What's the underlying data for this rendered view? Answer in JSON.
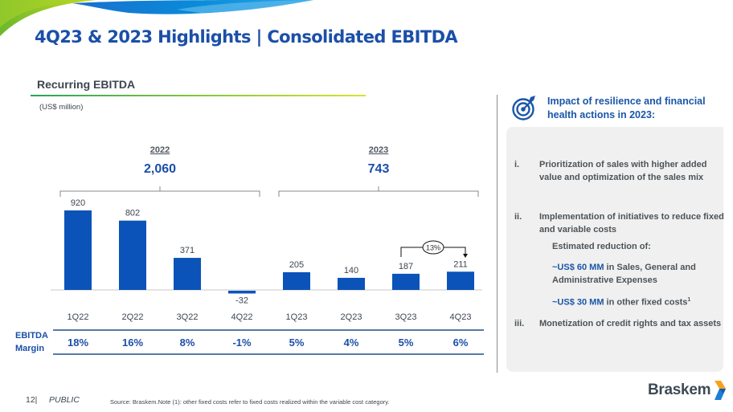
{
  "header": {
    "title": "4Q23 & 2023 Highlights | Consolidated EBITDA"
  },
  "section": {
    "title": "Recurring EBITDA",
    "units": "(US$ million)"
  },
  "chart_data": {
    "type": "bar",
    "title": "Recurring EBITDA",
    "ylabel": "US$ million",
    "xlabel": "",
    "categories": [
      "1Q22",
      "2Q22",
      "3Q22",
      "4Q22",
      "1Q23",
      "2Q23",
      "3Q23",
      "4Q23"
    ],
    "values": [
      920,
      802,
      371,
      -32,
      205,
      140,
      187,
      211
    ],
    "value_labels": [
      "920",
      "802",
      "371",
      "-32",
      "205",
      "140",
      "187",
      "211"
    ],
    "ylim": [
      -60,
      1000
    ],
    "grid": false,
    "bar_color": "#0b53b8",
    "year_groups": [
      {
        "year": "2022",
        "total": "2,060",
        "from_index": 0,
        "to_index": 3
      },
      {
        "year": "2023",
        "total": "743",
        "from_index": 4,
        "to_index": 7
      }
    ],
    "annotation": {
      "from": "3Q23",
      "to": "4Q23",
      "label": "13%"
    },
    "margin_row": {
      "label_line1": "EBITDA",
      "label_line2": "Margin",
      "values": [
        "18%",
        "16%",
        "8%",
        "-1%",
        "5%",
        "4%",
        "5%",
        "6%"
      ]
    }
  },
  "side_panel": {
    "icon": "target-icon",
    "title_line1": "Impact of resilience and financial",
    "title_line2": "health actions in 2023:",
    "items": [
      {
        "num": "i.",
        "text": "Prioritization of sales with higher added value and optimization of the sales mix"
      },
      {
        "num": "ii.",
        "text": "Implementation of initiatives to reduce fixed and variable costs"
      },
      {
        "num": "iii.",
        "text": "Monetization of credit rights and tax assets"
      }
    ],
    "estimate_label": "Estimated reduction of:",
    "reductions": [
      {
        "amount": "~US$ 60 MM",
        "text": " in Sales, General and Administrative Expenses",
        "sup": ""
      },
      {
        "amount": "~US$ 30 MM",
        "text": " in other fixed costs",
        "sup": "1"
      }
    ]
  },
  "footer": {
    "page": "12|",
    "classification": "PUBLIC",
    "source": "Source: Braskem.Note (1): other fixed costs refer to fixed costs realized within the variable cost category.",
    "logo_text": "Braskem"
  },
  "colors": {
    "brand_blue": "#1b4fa8",
    "bar_blue": "#0b53b8",
    "panel_gray": "#f0f0f0",
    "logo_orange": "#f7a21b"
  }
}
